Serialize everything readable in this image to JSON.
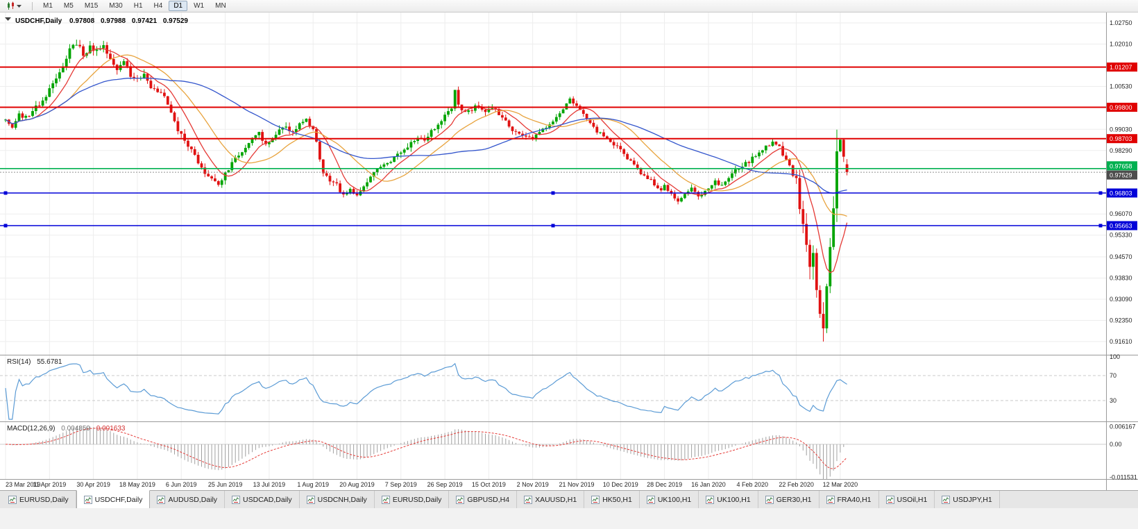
{
  "toolbar": {
    "timeframes": [
      "M1",
      "M5",
      "M15",
      "M30",
      "H1",
      "H4",
      "D1",
      "W1",
      "MN"
    ],
    "active_timeframe": "D1"
  },
  "chart": {
    "title_symbol": "USDCHF,Daily",
    "ohlc": {
      "open": "0.97808",
      "high": "0.97988",
      "low": "0.97421",
      "close": "0.97529"
    }
  },
  "indicators": {
    "rsi": {
      "label": "RSI(14)",
      "value": "55.6781",
      "levels": [
        100,
        70,
        30
      ]
    },
    "macd": {
      "label": "MACD(12,26,9)",
      "value_main": "0.004859",
      "value_signal": "0.001633",
      "axis": [
        "0.006167",
        "0.00",
        "-0.011531"
      ]
    }
  },
  "axis": {
    "price_ticks": [
      "1.02750",
      "1.02010",
      "1.00530",
      "0.99030",
      "0.98290",
      "0.96070",
      "0.95330",
      "0.94570",
      "0.93830",
      "0.93090",
      "0.92350",
      "0.91610"
    ],
    "dates": [
      "23 Mar 2019",
      "11 Apr 2019",
      "30 Apr 2019",
      "18 May 2019",
      "6 Jun 2019",
      "25 Jun 2019",
      "13 Jul 2019",
      "1 Aug 2019",
      "20 Aug 2019",
      "7 Sep 2019",
      "26 Sep 2019",
      "15 Oct 2019",
      "2 Nov 2019",
      "21 Nov 2019",
      "10 Dec 2019",
      "28 Dec 2019",
      "16 Jan 2020",
      "4 Feb 2020",
      "22 Feb 2020",
      "12 Mar 2020"
    ]
  },
  "hlines": [
    {
      "value": 1.01207,
      "label": "1.01207",
      "color": "#e00000",
      "width": 2
    },
    {
      "value": 0.998,
      "label": "0.99800",
      "color": "#e00000",
      "width": 2
    },
    {
      "value": 0.98703,
      "label": "0.98703",
      "color": "#e00000",
      "width": 2
    },
    {
      "value": 0.97658,
      "label": "0.97658",
      "color": "#00b050",
      "width": 1.6,
      "badge_dy": -4
    },
    {
      "value": 0.97529,
      "label": "0.97529",
      "color": "#909090",
      "badge": "#4d4d4d",
      "current": true,
      "badge_dy": 4
    },
    {
      "value": 0.96803,
      "label": "0.96803",
      "color": "#0000d8",
      "width": 1.6,
      "handles": true
    },
    {
      "value": 0.95663,
      "label": "0.95663",
      "color": "#0000d8",
      "width": 1.6,
      "handles": true
    }
  ],
  "tabs": {
    "active_index": 1,
    "items": [
      "EURUSD,Daily",
      "USDCHF,Daily",
      "AUDUSD,Daily",
      "USDCAD,Daily",
      "USDCNH,Daily",
      "EURUSD,Daily",
      "GBPUSD,H4",
      "XAUUSD,H1",
      "HK50,H1",
      "UK100,H1",
      "UK100,H1",
      "GER30,H1",
      "FRA40,H1",
      "USOil,H1",
      "USDJPY,H1"
    ]
  },
  "chart_data": {
    "type": "candlestick",
    "symbol": "USDCHF",
    "timeframe": "Daily",
    "date_range": [
      "23 Mar 2019",
      "12 Mar 2020"
    ],
    "price_range": [
      0.9115,
      1.0311
    ],
    "bars": 250,
    "last_bar": {
      "open": 0.97808,
      "high": 0.97988,
      "low": 0.97421,
      "close": 0.97529
    },
    "key_levels": {
      "resistance": [
        1.01207,
        0.998,
        0.98703
      ],
      "support_green": 0.97658,
      "support_blue": [
        0.96803,
        0.95663
      ],
      "current": 0.97529,
      "crash_low": 0.9161
    },
    "close_anchors": [
      [
        0,
        0.9935
      ],
      [
        2,
        0.9915
      ],
      [
        4,
        0.995
      ],
      [
        6,
        0.9942
      ],
      [
        9,
        0.9985
      ],
      [
        11,
        1.0
      ],
      [
        13,
        1.004
      ],
      [
        15,
        1.0085
      ],
      [
        17,
        1.013
      ],
      [
        19,
        1.018
      ],
      [
        21,
        1.0205
      ],
      [
        23,
        1.0168
      ],
      [
        25,
        1.0192
      ],
      [
        27,
        1.0178
      ],
      [
        29,
        1.0196
      ],
      [
        31,
        1.015
      ],
      [
        33,
        1.011
      ],
      [
        35,
        1.0136
      ],
      [
        37,
        1.0092
      ],
      [
        39,
        1.0076
      ],
      [
        41,
        1.0092
      ],
      [
        43,
        1.005
      ],
      [
        45,
        1.0034
      ],
      [
        47,
        1.0018
      ],
      [
        49,
        0.9958
      ],
      [
        51,
        0.99
      ],
      [
        53,
        0.9862
      ],
      [
        55,
        0.983
      ],
      [
        57,
        0.9782
      ],
      [
        59,
        0.9756
      ],
      [
        61,
        0.9726
      ],
      [
        63,
        0.97
      ],
      [
        65,
        0.9746
      ],
      [
        67,
        0.9786
      ],
      [
        69,
        0.9812
      ],
      [
        71,
        0.9842
      ],
      [
        73,
        0.987
      ],
      [
        75,
        0.9886
      ],
      [
        77,
        0.9856
      ],
      [
        79,
        0.9872
      ],
      [
        81,
        0.9896
      ],
      [
        83,
        0.9912
      ],
      [
        85,
        0.9892
      ],
      [
        87,
        0.9922
      ],
      [
        89,
        0.994
      ],
      [
        91,
        0.9905
      ],
      [
        92,
        0.9855
      ],
      [
        93,
        0.979
      ],
      [
        94,
        0.975
      ],
      [
        96,
        0.9728
      ],
      [
        98,
        0.9706
      ],
      [
        100,
        0.9672
      ],
      [
        102,
        0.9692
      ],
      [
        104,
        0.9666
      ],
      [
        106,
        0.9702
      ],
      [
        108,
        0.9732
      ],
      [
        110,
        0.976
      ],
      [
        112,
        0.9776
      ],
      [
        114,
        0.9792
      ],
      [
        116,
        0.9812
      ],
      [
        118,
        0.9832
      ],
      [
        120,
        0.9856
      ],
      [
        122,
        0.988
      ],
      [
        124,
        0.987
      ],
      [
        126,
        0.9896
      ],
      [
        128,
        0.992
      ],
      [
        130,
        0.9946
      ],
      [
        132,
        0.9982
      ],
      [
        133,
        1.0035
      ],
      [
        134,
        0.9992
      ],
      [
        136,
        0.9956
      ],
      [
        138,
        0.9976
      ],
      [
        140,
        0.999
      ],
      [
        142,
        0.9966
      ],
      [
        144,
        0.9978
      ],
      [
        146,
        0.9958
      ],
      [
        148,
        0.993
      ],
      [
        150,
        0.9904
      ],
      [
        152,
        0.9888
      ],
      [
        154,
        0.9872
      ],
      [
        156,
        0.987
      ],
      [
        158,
        0.989
      ],
      [
        160,
        0.9912
      ],
      [
        162,
        0.9936
      ],
      [
        164,
        0.9956
      ],
      [
        167,
        1.001
      ],
      [
        169,
        0.9986
      ],
      [
        171,
        0.9952
      ],
      [
        173,
        0.9922
      ],
      [
        175,
        0.9896
      ],
      [
        177,
        0.9876
      ],
      [
        179,
        0.9856
      ],
      [
        182,
        0.983
      ],
      [
        184,
        0.9802
      ],
      [
        186,
        0.9776
      ],
      [
        188,
        0.9752
      ],
      [
        190,
        0.9732
      ],
      [
        192,
        0.9712
      ],
      [
        194,
        0.9692
      ],
      [
        195,
        0.9702
      ],
      [
        197,
        0.9676
      ],
      [
        199,
        0.9656
      ],
      [
        201,
        0.9682
      ],
      [
        203,
        0.9702
      ],
      [
        205,
        0.9666
      ],
      [
        207,
        0.9692
      ],
      [
        208,
        0.9702
      ],
      [
        210,
        0.9722
      ],
      [
        212,
        0.9702
      ],
      [
        214,
        0.9732
      ],
      [
        216,
        0.9756
      ],
      [
        218,
        0.9776
      ],
      [
        220,
        0.9792
      ],
      [
        221,
        0.9802
      ],
      [
        223,
        0.9822
      ],
      [
        225,
        0.9846
      ],
      [
        227,
        0.9856
      ],
      [
        229,
        0.9836
      ],
      [
        231,
        0.9802
      ],
      [
        233,
        0.9752
      ],
      [
        234,
        0.9722
      ],
      [
        235,
        0.9642
      ],
      [
        236,
        0.9562
      ],
      [
        237,
        0.9482
      ],
      [
        238,
        0.9422
      ],
      [
        239,
        0.9472
      ],
      [
        240,
        0.9362
      ],
      [
        241,
        0.9252
      ],
      [
        242,
        0.9192
      ],
      [
        243,
        0.9322
      ],
      [
        244,
        0.9482
      ],
      [
        245,
        0.9652
      ],
      [
        246,
        0.9822
      ],
      [
        247,
        0.9882
      ],
      [
        248,
        0.98
      ],
      [
        249,
        0.97529
      ]
    ],
    "volatility_anchors": [
      [
        0,
        0.002
      ],
      [
        20,
        0.0024
      ],
      [
        60,
        0.002
      ],
      [
        100,
        0.0018
      ],
      [
        130,
        0.002
      ],
      [
        160,
        0.0014
      ],
      [
        200,
        0.0015
      ],
      [
        228,
        0.0018
      ],
      [
        234,
        0.0035
      ],
      [
        238,
        0.006
      ],
      [
        242,
        0.008
      ],
      [
        246,
        0.006
      ],
      [
        249,
        0.0028
      ]
    ],
    "bar_overrides": [
      {
        "index": 242,
        "low": 0.9161
      },
      {
        "index": 246,
        "high": 0.9902
      },
      {
        "index": 249,
        "open": 0.97808,
        "high": 0.97988,
        "low": 0.97421,
        "close": 0.97529
      }
    ],
    "moving_averages": [
      {
        "period": 9,
        "color": "#e53935"
      },
      {
        "period": 20,
        "color": "#e8a33d"
      },
      {
        "period": 50,
        "color": "#3355cc"
      }
    ],
    "rsi_period": 14,
    "macd": {
      "fast": 12,
      "slow": 26,
      "signal": 9
    },
    "colors": {
      "candle_up": "#00a400",
      "candle_down": "#e01212",
      "grid": "#ededed",
      "rsi": "#5b9bd5",
      "macd_hist": "#a0a0a0",
      "macd_signal": "#e53935"
    }
  }
}
